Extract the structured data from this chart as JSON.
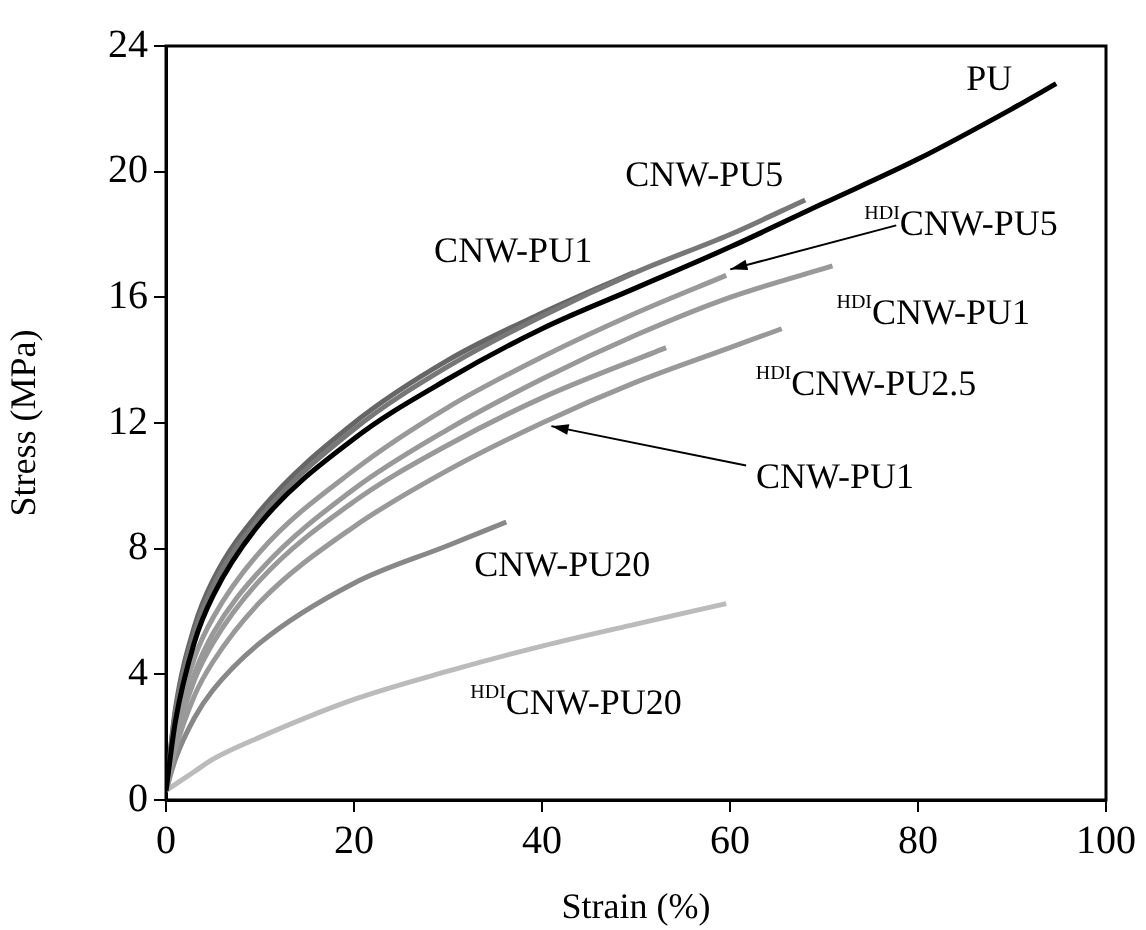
{
  "chart_data": {
    "type": "line",
    "xlabel": "Strain (%)",
    "ylabel": "Stress (MPa)",
    "xlim": [
      0,
      100
    ],
    "xticks": [
      0,
      20,
      40,
      60,
      80,
      100
    ],
    "ylim": [
      0,
      24
    ],
    "yticks": [
      0,
      4,
      8,
      12,
      16,
      20,
      24
    ],
    "grid": false,
    "legend": false,
    "marker": "none",
    "line_style": "solid",
    "series": [
      {
        "name": "PU",
        "color": "#000000",
        "x": [
          0,
          1,
          3,
          5,
          10,
          20,
          30,
          40,
          50,
          60,
          70,
          80,
          90,
          94.7
        ],
        "values": [
          0.3,
          2.5,
          5,
          6.5,
          8.8,
          11.5,
          13.4,
          15,
          16.3,
          17.6,
          19,
          20.4,
          22,
          22.8
        ]
      },
      {
        "name": "CNW-PU5",
        "color": "#777777",
        "x": [
          0,
          1,
          3,
          5,
          10,
          20,
          30,
          40,
          50,
          60,
          68
        ],
        "values": [
          0.3,
          2.8,
          5.3,
          6.8,
          9,
          11.8,
          13.8,
          15.4,
          16.8,
          18,
          19.1
        ]
      },
      {
        "name": "CNW-PU1",
        "color": "#666666",
        "x": [
          0,
          1,
          3,
          5,
          10,
          20,
          30,
          40,
          49.8
        ],
        "values": [
          0.3,
          2.9,
          5.5,
          7,
          9.2,
          12,
          14,
          15.5,
          16.8
        ]
      },
      {
        "name": "$^{HDI}$CNW-PU5",
        "color": "#999999",
        "x": [
          0,
          1,
          3,
          5,
          10,
          20,
          30,
          40,
          50,
          59.6
        ],
        "values": [
          0.3,
          2.3,
          4.5,
          5.8,
          7.9,
          10.5,
          12.5,
          14.1,
          15.5,
          16.7
        ]
      },
      {
        "name": "$^{HDI}$CNW-PU1",
        "color": "#999999",
        "x": [
          0,
          1,
          3,
          5,
          10,
          20,
          30,
          40,
          50,
          60,
          70.9
        ],
        "values": [
          0.3,
          2,
          4,
          5.3,
          7.3,
          9.9,
          11.8,
          13.4,
          14.8,
          16,
          17
        ]
      },
      {
        "name": "$^{HDI}$CNW-PU2.5",
        "color": "#999999",
        "x": [
          0,
          1,
          3,
          5,
          10,
          20,
          30,
          40,
          50,
          60,
          65.5
        ],
        "values": [
          0.3,
          1.6,
          3.3,
          4.4,
          6.3,
          8.7,
          10.5,
          12,
          13.3,
          14.4,
          15
        ]
      },
      {
        "name": "CNW-PU1",
        "color": "#999999",
        "x": [
          0,
          1,
          3,
          5,
          10,
          20,
          30,
          40,
          53.2
        ],
        "values": [
          0.3,
          1.9,
          3.8,
          5,
          7,
          9.5,
          11.3,
          12.8,
          14.4
        ]
      },
      {
        "name": "CNW-PU20",
        "color": "#888888",
        "x": [
          0,
          1,
          3,
          5,
          10,
          20,
          30,
          36.2
        ],
        "values": [
          0.3,
          1.3,
          2.6,
          3.5,
          5,
          6.9,
          8.1,
          8.85
        ]
      },
      {
        "name": "$^{HDI}$CNW-PU20",
        "color": "#bbbbbb",
        "x": [
          0,
          3,
          5,
          10,
          20,
          30,
          40,
          50,
          59.6
        ],
        "values": [
          0.3,
          0.9,
          1.3,
          2,
          3.2,
          4.1,
          4.9,
          5.6,
          6.25
        ]
      }
    ]
  }
}
